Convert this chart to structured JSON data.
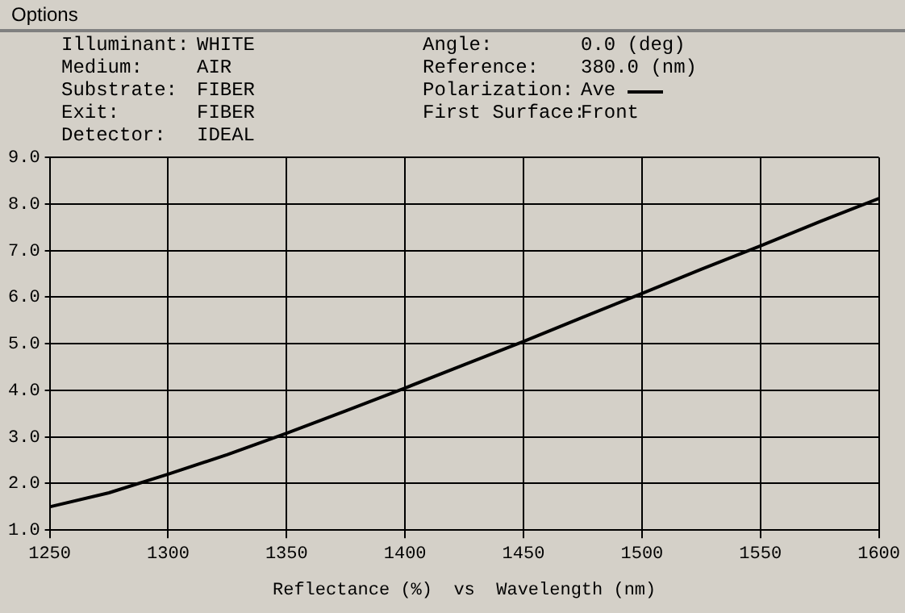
{
  "chart_data": {
    "type": "line",
    "xlabel": "Reflectance (%)  vs  Wavelength (nm)",
    "legend_title": "Polarization:",
    "legend": "top",
    "annotations": [
      "Options",
      "Illuminant:",
      "WHITE",
      "Angle:",
      "0.0 (deg)",
      "Medium:",
      "AIR",
      "Reference:",
      "380.0 (nm)",
      "Substrate:",
      "FIBER",
      "Exit:",
      "FIBER",
      "First Surface:",
      "Front",
      "Detector:",
      "IDEAL"
    ],
    "x": [
      1250,
      1275,
      1300,
      1325,
      1350,
      1375,
      1400,
      1425,
      1450,
      1475,
      1500,
      1525,
      1550,
      1575,
      1600
    ],
    "series": [
      {
        "name": "Ave",
        "color": "#000000",
        "values": [
          1.5,
          1.8,
          2.2,
          2.62,
          3.08,
          3.56,
          4.05,
          4.55,
          5.05,
          5.57,
          6.08,
          6.6,
          7.1,
          7.62,
          8.12
        ]
      }
    ],
    "xlim": [
      1250,
      1600
    ],
    "xticks": [
      1250,
      1300,
      1350,
      1400,
      1450,
      1500,
      1550,
      1600
    ],
    "ylim": [
      1,
      9
    ],
    "yticks": [
      {
        "value": 1,
        "label": "1.0"
      },
      {
        "value": 2,
        "label": "2.0"
      },
      {
        "value": 3,
        "label": "3.0"
      },
      {
        "value": 4,
        "label": "4.0"
      },
      {
        "value": 5,
        "label": "5.0"
      },
      {
        "value": 6,
        "label": "6.0"
      },
      {
        "value": 7,
        "label": "7.0"
      },
      {
        "value": 8,
        "label": "8.0"
      },
      {
        "value": 9,
        "label": "9.0"
      }
    ],
    "grid": true,
    "marker": "none",
    "line_style": "solid"
  }
}
